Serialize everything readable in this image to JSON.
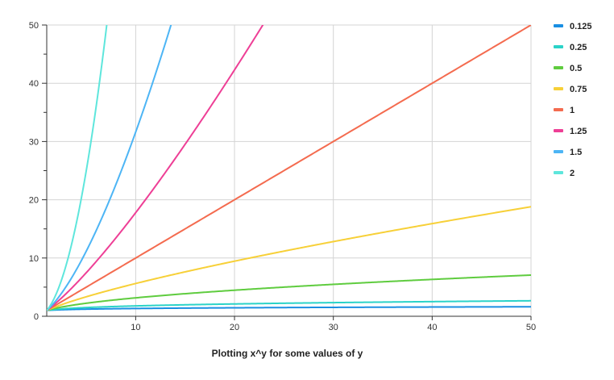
{
  "chart_data": {
    "type": "line",
    "title": "",
    "xlabel": "Plotting x^y for some values of y",
    "ylabel": "",
    "xlim": [
      1,
      50
    ],
    "ylim": [
      0,
      50
    ],
    "x_ticks": [
      10,
      20,
      30,
      40,
      50
    ],
    "y_ticks": [
      0,
      10,
      20,
      30,
      40,
      50
    ],
    "grid": true,
    "legend_position": "right",
    "series": [
      {
        "name": "0.125",
        "exponent": 0.125,
        "color": "#1a8fe3"
      },
      {
        "name": "0.25",
        "exponent": 0.25,
        "color": "#2bd3c8"
      },
      {
        "name": "0.5",
        "exponent": 0.5,
        "color": "#5fcc3f"
      },
      {
        "name": "0.75",
        "exponent": 0.75,
        "color": "#f7d038"
      },
      {
        "name": "1",
        "exponent": 1,
        "color": "#f46b4f"
      },
      {
        "name": "1.25",
        "exponent": 1.25,
        "color": "#ee3f96"
      },
      {
        "name": "1.5",
        "exponent": 1.5,
        "color": "#4db5f5"
      },
      {
        "name": "2",
        "exponent": 2,
        "color": "#5ee6dc"
      }
    ]
  }
}
